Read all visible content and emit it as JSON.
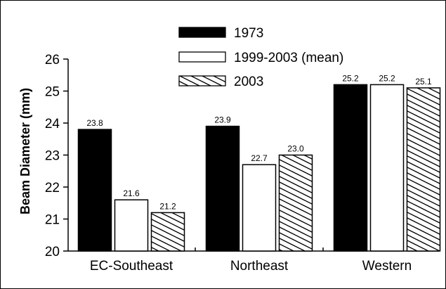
{
  "chart_data": {
    "type": "bar",
    "title": "",
    "xlabel": "",
    "ylabel": "Beam Diameter (mm)",
    "ylim": [
      20,
      26
    ],
    "yticks": [
      20,
      21,
      22,
      23,
      24,
      25,
      26
    ],
    "grid": false,
    "legend_position": "top-center",
    "categories": [
      "EC-Southeast",
      "Northeast",
      "Western"
    ],
    "series": [
      {
        "name": "1973",
        "values": [
          23.8,
          23.9,
          25.2
        ],
        "labels": [
          "23.8",
          "23.9",
          "25.2"
        ],
        "fill": "solid-black"
      },
      {
        "name": "1999-2003 (mean)",
        "values": [
          21.6,
          22.7,
          25.2
        ],
        "labels": [
          "21.6",
          "22.7",
          "25.2"
        ],
        "fill": "white"
      },
      {
        "name": "2003",
        "values": [
          21.2,
          23.0,
          25.1
        ],
        "labels": [
          "21.2",
          "23.0",
          "25.1"
        ],
        "fill": "diagonal-hatch"
      }
    ]
  },
  "colors": {
    "bar_black": "#000000",
    "bar_white": "#ffffff",
    "axis": "#000000"
  }
}
